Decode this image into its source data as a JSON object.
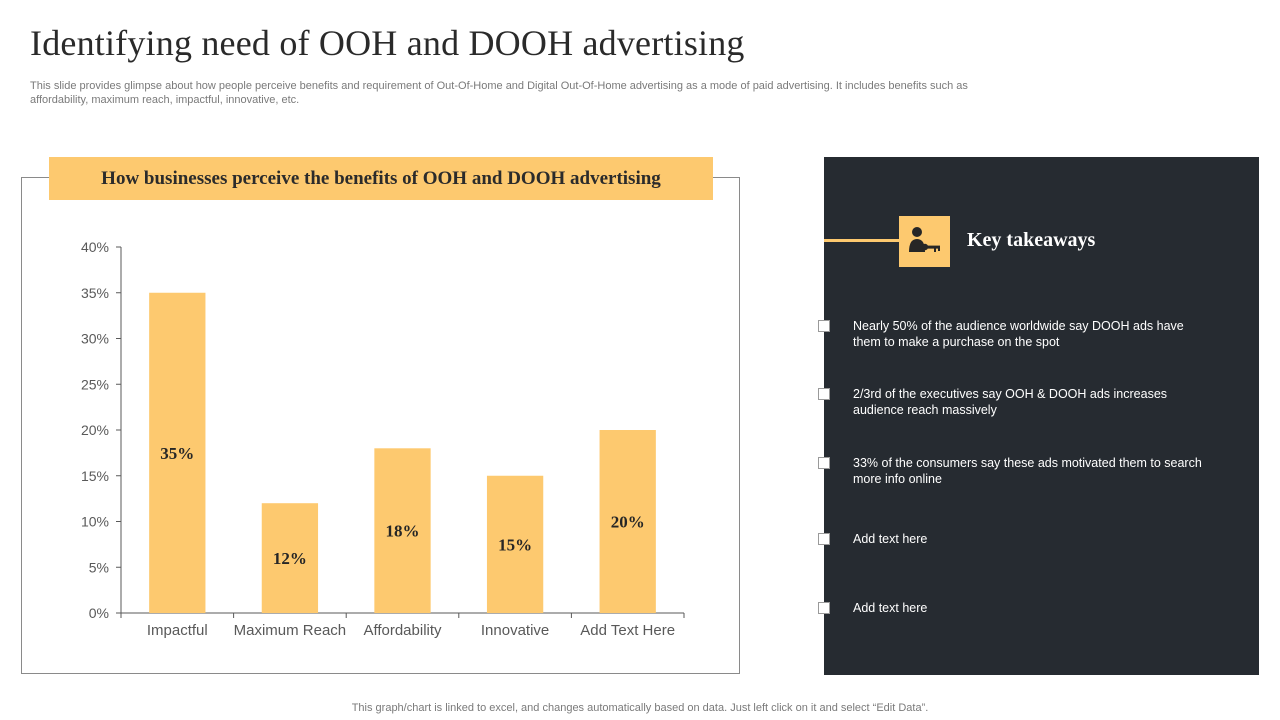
{
  "page": {
    "title": "Identifying need of OOH and DOOH advertising",
    "subtitle": "This slide provides glimpse about how people perceive benefits and requirement of Out-Of-Home and Digital Out-Of-Home advertising as a mode of paid advertising. It includes benefits such as affordability, maximum reach, impactful, innovative, etc.",
    "footer_note": "This graph/chart is linked to excel,  and changes automatically based on data. Just left click on it and select “Edit Data”."
  },
  "chart_header": "How businesses perceive the benefits of OOH and DOOH advertising",
  "chart_data": {
    "type": "bar",
    "title": "How businesses perceive the benefits of OOH and DOOH advertising",
    "categories": [
      "Impactful",
      "Maximum Reach",
      "Affordability",
      "Innovative",
      "Add Text Here"
    ],
    "values": [
      35,
      12,
      18,
      15,
      20
    ],
    "value_labels": [
      "35%",
      "12%",
      "18%",
      "15%",
      "20%"
    ],
    "ylim": [
      0,
      40
    ],
    "yticks": [
      0,
      5,
      10,
      15,
      20,
      25,
      30,
      35,
      40
    ],
    "ytick_labels": [
      "0%",
      "5%",
      "10%",
      "15%",
      "20%",
      "25%",
      "30%",
      "35%",
      "40%"
    ],
    "xlabel": "",
    "ylabel": "",
    "grid": false,
    "bar_color": "#fdc96f"
  },
  "takeaways": {
    "title": "Key takeaways",
    "icon": "key-person-icon",
    "items": [
      "Nearly 50% of the audience worldwide  say DOOH ads have them to make a purchase on the spot",
      "2/3rd of the executives say OOH & DOOH ads increases audience reach massively",
      "33% of the consumers say these ads motivated them to search more info online",
      "Add text here",
      "Add text here"
    ]
  },
  "colors": {
    "accent": "#fdc96f",
    "panel_bg": "#262b31",
    "axis": "#595959"
  }
}
